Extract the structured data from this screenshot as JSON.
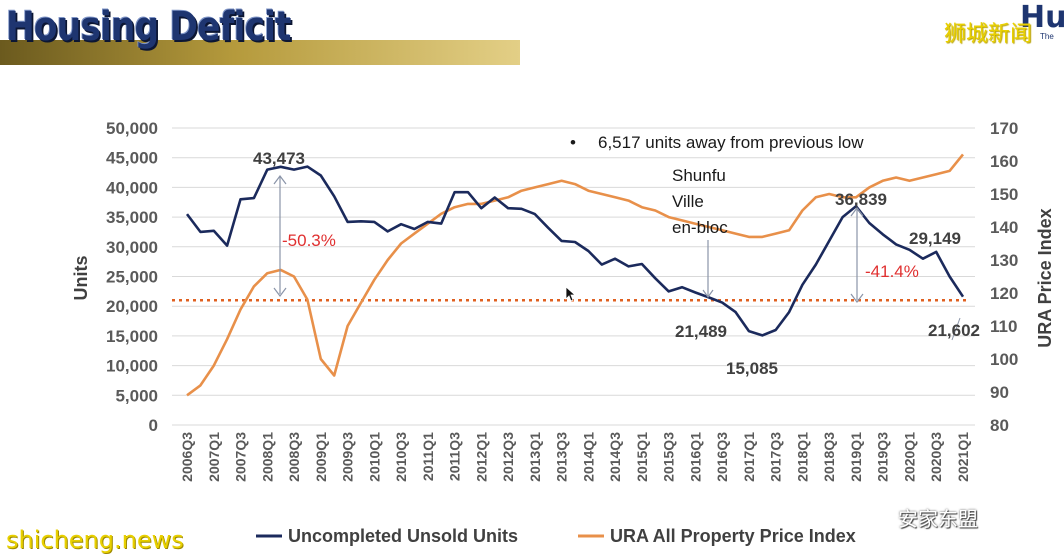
{
  "header": {
    "title": "Housing Deficit",
    "logo_text": "Hu",
    "logo_sub": "The",
    "watermark_top": "狮城新闻",
    "watermark_left": "shicheng.news",
    "watermark_right": "安家东盟"
  },
  "colors": {
    "units_series": "#1b2a5c",
    "price_series": "#e8904a",
    "threshold_line": "#e06020",
    "annotation_red": "#e03030",
    "title_text": "#1e3570"
  },
  "chart_data": {
    "type": "line",
    "title": "Housing Deficit",
    "ylabel_left": "Units",
    "ylabel_right": "URA Price Index",
    "ylim_left": [
      0,
      50000
    ],
    "ylim_right": [
      80,
      170
    ],
    "yticks_left": [
      "0",
      "5,000",
      "10,000",
      "15,000",
      "20,000",
      "25,000",
      "30,000",
      "35,000",
      "40,000",
      "45,000",
      "50,000"
    ],
    "yticks_right": [
      "80",
      "90",
      "100",
      "110",
      "120",
      "130",
      "140",
      "150",
      "160",
      "170"
    ],
    "xtick_labels": [
      "2006Q3",
      "2007Q1",
      "2007Q3",
      "2008Q1",
      "2008Q3",
      "2009Q1",
      "2009Q3",
      "2010Q1",
      "2010Q3",
      "2011Q1",
      "2011Q3",
      "2012Q1",
      "2012Q3",
      "2013Q1",
      "2013Q3",
      "2014Q1",
      "2014Q3",
      "2015Q1",
      "2015Q3",
      "2016Q1",
      "2016Q3",
      "2017Q1",
      "2017Q3",
      "2018Q1",
      "2018Q3",
      "2019Q1",
      "2019Q3",
      "2020Q1",
      "2020Q3",
      "2021Q1"
    ],
    "x": [
      "2006Q3",
      "2006Q4",
      "2007Q1",
      "2007Q2",
      "2007Q3",
      "2007Q4",
      "2008Q1",
      "2008Q2",
      "2008Q3",
      "2008Q4",
      "2009Q1",
      "2009Q2",
      "2009Q3",
      "2009Q4",
      "2010Q1",
      "2010Q2",
      "2010Q3",
      "2010Q4",
      "2011Q1",
      "2011Q2",
      "2011Q3",
      "2011Q4",
      "2012Q1",
      "2012Q2",
      "2012Q3",
      "2012Q4",
      "2013Q1",
      "2013Q2",
      "2013Q3",
      "2013Q4",
      "2014Q1",
      "2014Q2",
      "2014Q3",
      "2014Q4",
      "2015Q1",
      "2015Q2",
      "2015Q3",
      "2015Q4",
      "2016Q1",
      "2016Q2",
      "2016Q3",
      "2016Q4",
      "2017Q1",
      "2017Q2",
      "2017Q3",
      "2017Q4",
      "2018Q1",
      "2018Q2",
      "2018Q3",
      "2018Q4",
      "2019Q1",
      "2019Q2",
      "2019Q3",
      "2019Q4",
      "2020Q1",
      "2020Q2",
      "2020Q3",
      "2020Q4",
      "2021Q1"
    ],
    "series": [
      {
        "name": "Uncompleted Unsold Units",
        "axis": "left",
        "values": [
          35500,
          32500,
          32700,
          30200,
          38000,
          38200,
          43000,
          43473,
          43000,
          43500,
          42000,
          38500,
          34200,
          34300,
          34200,
          32600,
          33800,
          33000,
          34200,
          33900,
          39200,
          39200,
          36500,
          38300,
          36500,
          36400,
          35500,
          33200,
          31000,
          30800,
          29300,
          27000,
          28000,
          26700,
          27100,
          24700,
          22500,
          23200,
          22300,
          21489,
          20600,
          19000,
          15800,
          15085,
          16000,
          19000,
          23600,
          27000,
          31000,
          35000,
          36839,
          34000,
          32100,
          30400,
          29500,
          28000,
          29149,
          25000,
          21602
        ]
      },
      {
        "name": "URA All Property Price Index",
        "axis": "right",
        "values": [
          89,
          92,
          98,
          106,
          115,
          122,
          126,
          127,
          125,
          118,
          100,
          95,
          110,
          117,
          124,
          130,
          135,
          138,
          141,
          144,
          146,
          147,
          147,
          148,
          149,
          151,
          152,
          153,
          154,
          153,
          151,
          150,
          149,
          148,
          146,
          145,
          143,
          142,
          141,
          140,
          139,
          138,
          137,
          137,
          138,
          139,
          145,
          149,
          150,
          149,
          149,
          152,
          154,
          155,
          154,
          155,
          156,
          157,
          162
        ]
      }
    ],
    "threshold": {
      "value": 21000,
      "axis": "left",
      "style": "dotted"
    },
    "annotations": {
      "bullet": "6,517 units away from previous low",
      "shunfu_line1": "Shunfu",
      "shunfu_line2": "Ville",
      "shunfu_line3": "en-bloc",
      "peak_2008": "43,473",
      "drop_2008": "-50.3%",
      "low_2016": "21,489",
      "low_2017": "15,085",
      "peak_2019": "36,839",
      "drop_2019": "-41.4%",
      "mid_2020": "29,149",
      "latest_2021": "21,602"
    },
    "legend": {
      "placement": "bottom"
    }
  }
}
